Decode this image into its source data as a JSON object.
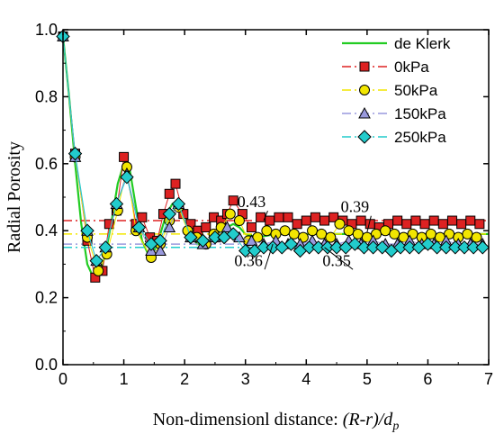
{
  "chart_data": {
    "type": "line",
    "title": "",
    "xlabel_prefix": "Non-dimensionl distance: ",
    "xlabel_math": "(R-r)/d",
    "xlabel_sub": "p",
    "ylabel": "Radial Porosity",
    "xlim": [
      0,
      7
    ],
    "ylim": [
      0.0,
      1.0
    ],
    "xticks": [
      0,
      1,
      2,
      3,
      4,
      5,
      6,
      7
    ],
    "yticks": [
      0.0,
      0.2,
      0.4,
      0.6,
      0.8,
      1.0
    ],
    "ytick_labels": [
      "0.0",
      "0.2",
      "0.4",
      "0.6",
      "0.8",
      "1.0"
    ],
    "grid": false,
    "legend_position": "top-right",
    "curve": {
      "name": "de Klerk",
      "color": "#22cc22",
      "x": [
        0,
        0.1,
        0.2,
        0.3,
        0.4,
        0.5,
        0.6,
        0.7,
        0.8,
        0.9,
        1.0,
        1.05,
        1.1,
        1.2,
        1.3,
        1.4,
        1.5,
        1.6,
        1.7,
        1.8,
        1.9,
        2.0,
        2.1,
        2.2,
        2.3,
        2.5,
        2.7,
        2.8,
        2.9,
        3.0,
        3.2,
        3.5,
        4.0,
        5.0,
        6.0,
        7.0
      ],
      "y": [
        0.98,
        0.8,
        0.6,
        0.42,
        0.3,
        0.26,
        0.27,
        0.33,
        0.43,
        0.54,
        0.6,
        0.61,
        0.58,
        0.47,
        0.37,
        0.33,
        0.34,
        0.39,
        0.45,
        0.48,
        0.49,
        0.45,
        0.4,
        0.36,
        0.36,
        0.38,
        0.41,
        0.42,
        0.41,
        0.39,
        0.38,
        0.39,
        0.39,
        0.39,
        0.39,
        0.39
      ]
    },
    "series": [
      {
        "name": "0kPa",
        "color": "#dd2222",
        "marker": "square",
        "mean": 0.43,
        "x": [
          0,
          0.2,
          0.4,
          0.53,
          0.65,
          0.76,
          0.88,
          1.0,
          1.2,
          1.3,
          1.43,
          1.55,
          1.65,
          1.75,
          1.85,
          1.98,
          2.1,
          2.22,
          2.35,
          2.48,
          2.6,
          2.7,
          2.8,
          2.95,
          3.1,
          3.25,
          3.4,
          3.55,
          3.7,
          3.85,
          4.0,
          4.15,
          4.3,
          4.45,
          4.6,
          4.75,
          4.9,
          5.05,
          5.2,
          5.35,
          5.5,
          5.65,
          5.8,
          5.95,
          6.1,
          6.25,
          6.4,
          6.55,
          6.7,
          6.85
        ],
        "y": [
          0.98,
          0.63,
          0.37,
          0.26,
          0.28,
          0.42,
          0.46,
          0.62,
          0.42,
          0.44,
          0.38,
          0.37,
          0.45,
          0.51,
          0.54,
          0.45,
          0.42,
          0.4,
          0.41,
          0.44,
          0.43,
          0.45,
          0.49,
          0.45,
          0.41,
          0.44,
          0.43,
          0.44,
          0.44,
          0.42,
          0.43,
          0.44,
          0.43,
          0.44,
          0.43,
          0.42,
          0.43,
          0.42,
          0.41,
          0.42,
          0.43,
          0.42,
          0.43,
          0.42,
          0.43,
          0.42,
          0.43,
          0.42,
          0.43,
          0.42
        ]
      },
      {
        "name": "50kPa",
        "color": "#f2e600",
        "marker": "circle",
        "mean": 0.39,
        "x": [
          0,
          0.2,
          0.4,
          0.58,
          0.72,
          0.9,
          1.05,
          1.2,
          1.45,
          1.6,
          1.75,
          1.9,
          2.05,
          2.2,
          2.35,
          2.48,
          2.6,
          2.75,
          2.9,
          3.05,
          3.2,
          3.35,
          3.5,
          3.65,
          3.8,
          3.95,
          4.1,
          4.25,
          4.4,
          4.55,
          4.7,
          4.85,
          5.0,
          5.15,
          5.3,
          5.45,
          5.6,
          5.75,
          5.9,
          6.05,
          6.2,
          6.35,
          6.5,
          6.65,
          6.8
        ],
        "y": [
          0.98,
          0.62,
          0.38,
          0.28,
          0.33,
          0.46,
          0.59,
          0.4,
          0.32,
          0.36,
          0.43,
          0.47,
          0.4,
          0.38,
          0.36,
          0.39,
          0.41,
          0.45,
          0.43,
          0.37,
          0.38,
          0.4,
          0.39,
          0.4,
          0.39,
          0.38,
          0.4,
          0.39,
          0.38,
          0.42,
          0.4,
          0.39,
          0.38,
          0.39,
          0.4,
          0.39,
          0.38,
          0.39,
          0.38,
          0.39,
          0.38,
          0.39,
          0.38,
          0.39,
          0.38
        ]
      },
      {
        "name": "150kPa",
        "color": "#9999dd",
        "marker": "triangle",
        "mean": 0.36,
        "x": [
          0,
          0.2,
          0.4,
          0.55,
          0.7,
          0.88,
          1.05,
          1.25,
          1.45,
          1.6,
          1.75,
          1.9,
          2.1,
          2.3,
          2.5,
          2.7,
          2.9,
          3.1,
          3.3,
          3.5,
          3.7,
          3.9,
          4.1,
          4.3,
          4.5,
          4.7,
          4.9,
          5.1,
          5.3,
          5.5,
          5.7,
          5.9,
          6.1,
          6.3,
          6.5,
          6.7,
          6.9
        ],
        "y": [
          0.98,
          0.62,
          0.4,
          0.31,
          0.35,
          0.48,
          0.57,
          0.41,
          0.34,
          0.34,
          0.41,
          0.48,
          0.38,
          0.36,
          0.38,
          0.41,
          0.38,
          0.37,
          0.36,
          0.37,
          0.36,
          0.36,
          0.37,
          0.36,
          0.36,
          0.37,
          0.36,
          0.37,
          0.36,
          0.36,
          0.37,
          0.36,
          0.36,
          0.37,
          0.36,
          0.36,
          0.36
        ]
      },
      {
        "name": "250kPa",
        "color": "#22cccc",
        "marker": "diamond",
        "mean": 0.35,
        "x": [
          0,
          0.2,
          0.4,
          0.55,
          0.7,
          0.88,
          1.05,
          1.25,
          1.45,
          1.6,
          1.75,
          1.9,
          2.1,
          2.3,
          2.5,
          2.65,
          2.8,
          3.0,
          3.15,
          3.3,
          3.45,
          3.6,
          3.75,
          3.9,
          4.05,
          4.2,
          4.35,
          4.5,
          4.65,
          4.8,
          4.95,
          5.1,
          5.25,
          5.4,
          5.55,
          5.7,
          5.85,
          6.0,
          6.15,
          6.3,
          6.45,
          6.6,
          6.75,
          6.9
        ],
        "y": [
          0.98,
          0.63,
          0.4,
          0.31,
          0.35,
          0.48,
          0.56,
          0.41,
          0.36,
          0.37,
          0.45,
          0.48,
          0.38,
          0.37,
          0.38,
          0.38,
          0.39,
          0.34,
          0.34,
          0.35,
          0.35,
          0.35,
          0.36,
          0.34,
          0.35,
          0.35,
          0.35,
          0.35,
          0.35,
          0.36,
          0.35,
          0.35,
          0.35,
          0.34,
          0.35,
          0.35,
          0.35,
          0.36,
          0.35,
          0.35,
          0.35,
          0.35,
          0.35,
          0.35
        ]
      }
    ],
    "annotations": [
      {
        "text": "0.43",
        "x": 3.1,
        "y": 0.47,
        "point_x": 3.3,
        "point_y": 0.43
      },
      {
        "text": "0.39",
        "x": 4.8,
        "y": 0.455,
        "point_x": 5.0,
        "point_y": 0.395
      },
      {
        "text": "0.36",
        "x": 3.05,
        "y": 0.295,
        "point_x": 3.45,
        "point_y": 0.36
      },
      {
        "text": "0.35",
        "x": 4.5,
        "y": 0.295,
        "point_x": 4.3,
        "point_y": 0.35
      }
    ]
  }
}
